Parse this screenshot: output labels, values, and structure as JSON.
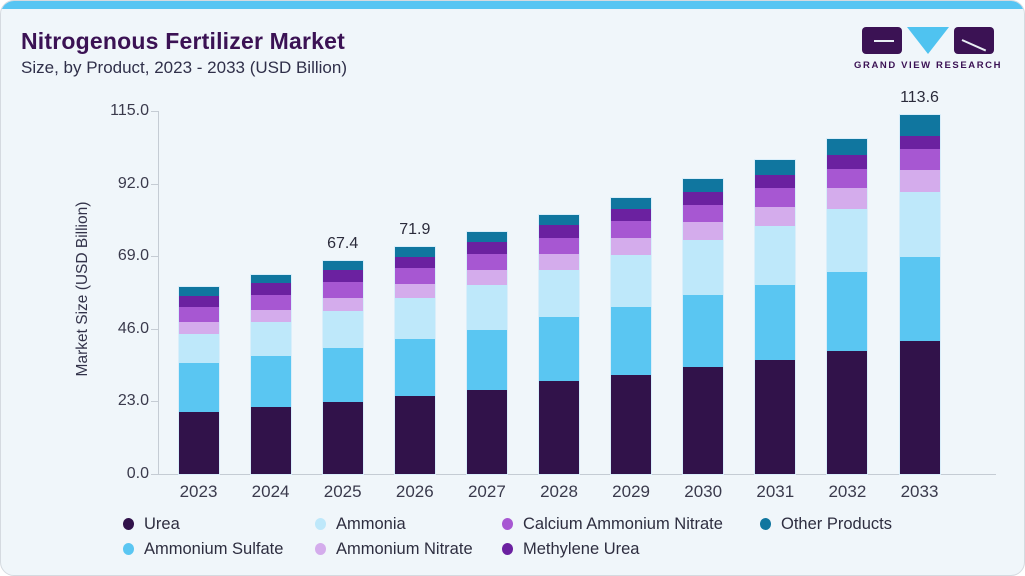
{
  "page": {
    "accent_color": "#57c5f3",
    "background_color": "#f0f6fa"
  },
  "header": {
    "title": "Nitrogenous Fertilizer Market",
    "subtitle": "Size, by Product, 2023 - 2033 (USD Billion)",
    "logo_text": "GRAND VIEW RESEARCH"
  },
  "chart_data": {
    "type": "bar",
    "stacked": true,
    "title": "Nitrogenous Fertilizer Market",
    "subtitle": "Size, by Product, 2023 - 2033 (USD Billion)",
    "xlabel": "",
    "ylabel": "Market Size (USD Billion)",
    "ylim": [
      0,
      115
    ],
    "ytick_labels": [
      "0.0",
      "23.0",
      "46.0",
      "69.0",
      "92.0",
      "115.0"
    ],
    "ytick_values": [
      0,
      23,
      46,
      69,
      92,
      115
    ],
    "grid": false,
    "categories": [
      "2023",
      "2024",
      "2025",
      "2026",
      "2027",
      "2028",
      "2029",
      "2030",
      "2031",
      "2032",
      "2033"
    ],
    "series": [
      {
        "name": "Urea",
        "color": "#31124a",
        "values": [
          19.5,
          21.1,
          22.7,
          24.6,
          26.5,
          29.3,
          31.5,
          34.0,
          36.0,
          38.9,
          42.0
        ]
      },
      {
        "name": "Ammonium Sulfate",
        "color": "#5ac6f2",
        "values": [
          15.5,
          16.4,
          17.3,
          18.2,
          19.2,
          20.3,
          21.4,
          22.6,
          23.9,
          25.2,
          26.6
        ]
      },
      {
        "name": "Ammonia",
        "color": "#bee8fa",
        "values": [
          9.5,
          10.6,
          11.6,
          12.9,
          14.1,
          15.0,
          16.4,
          17.4,
          18.6,
          19.9,
          20.7
        ]
      },
      {
        "name": "Ammonium Nitrate",
        "color": "#d4acec",
        "values": [
          3.8,
          4.0,
          4.3,
          4.5,
          4.8,
          5.1,
          5.4,
          5.7,
          6.1,
          6.5,
          7.0
        ]
      },
      {
        "name": "Calcium Ammonium Nitrate",
        "color": "#a757d2",
        "values": [
          4.5,
          4.6,
          4.8,
          4.9,
          5.1,
          5.2,
          5.4,
          5.6,
          5.9,
          6.2,
          6.5
        ]
      },
      {
        "name": "Methylene Urea",
        "color": "#6b21a0",
        "values": [
          3.7,
          3.7,
          3.8,
          3.8,
          3.9,
          3.9,
          4.0,
          4.0,
          4.1,
          4.2,
          4.2
        ]
      },
      {
        "name": "Other Products",
        "color": "#10769f",
        "values": [
          2.7,
          2.8,
          2.9,
          3.0,
          3.1,
          3.1,
          3.3,
          4.0,
          4.9,
          5.3,
          6.6
        ]
      }
    ],
    "totals": [
      59.2,
      63.2,
      67.4,
      71.9,
      76.7,
      81.9,
      87.4,
      93.3,
      99.5,
      106.2,
      113.6
    ],
    "bar_labels": {
      "2025": "67.4",
      "2026": "71.9",
      "2033": "113.6"
    },
    "legend_position": "bottom",
    "legend_order": [
      "Urea",
      "Ammonia",
      "Calcium Ammonium Nitrate",
      "Other Products",
      "Ammonium Sulfate",
      "Ammonium Nitrate",
      "Methylene Urea"
    ]
  }
}
